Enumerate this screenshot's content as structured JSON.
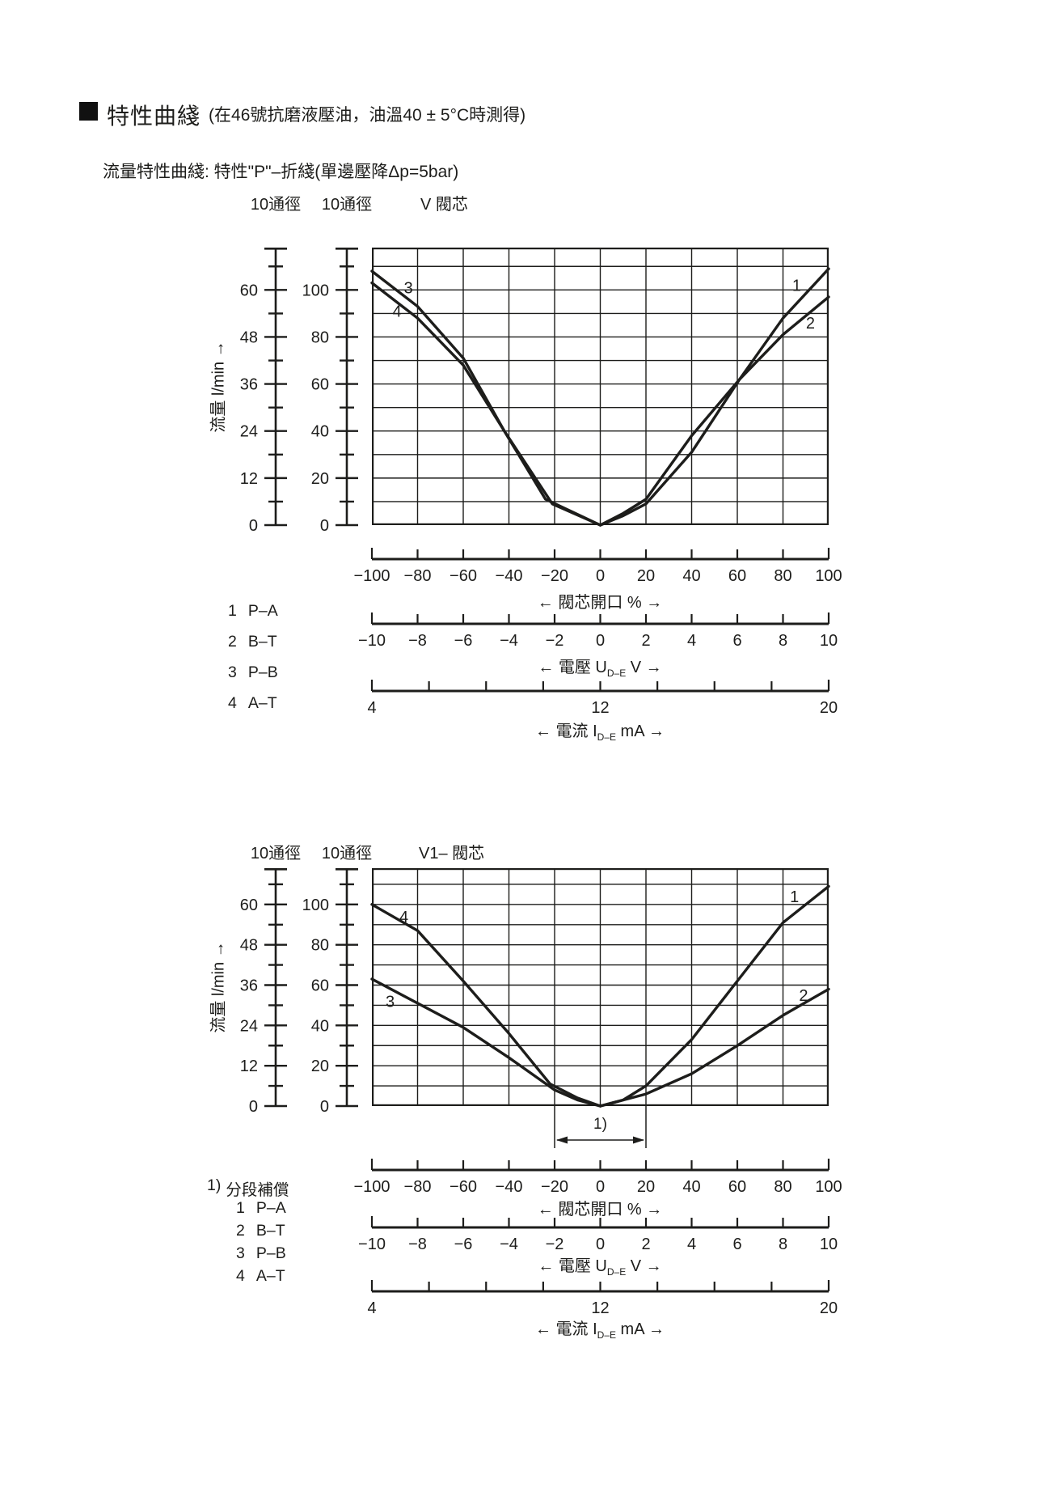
{
  "page": {
    "heading": "特性曲綫",
    "heading_note": "(在46號抗磨液壓油，油溫40 ± 5°C時測得)",
    "subtitle": "流量特性曲綫: 特性\"P\"–折綫(單邊壓降Δp=5bar)"
  },
  "colors": {
    "ink": "#1d1d1b",
    "bg": "#ffffff"
  },
  "axis_labels": {
    "flow": "流量 l/min →",
    "opening": "← 閥芯開口 % →",
    "voltage": {
      "pre": "← 電壓 U",
      "sub": "D–E",
      "post": " V →"
    },
    "current": {
      "pre": "← 電流 I",
      "sub": "D–E",
      "post": " mA →"
    }
  },
  "chart_data": [
    {
      "type": "line",
      "title": "V 閥芯",
      "size_labels": [
        "10通徑",
        "10通徑"
      ],
      "ylabel": "流量 l/min →",
      "xlabel": "閥芯開口 %",
      "xlim": [
        -100,
        100
      ],
      "y_frame": 118,
      "y_grid_max": 110,
      "grid": true,
      "y_outer": {
        "label_ticks": [
          0,
          12,
          24,
          36,
          48,
          60
        ],
        "minor_step": 6,
        "aligns_60_with_inner": 100
      },
      "y_inner": {
        "label_ticks": [
          0,
          20,
          40,
          60,
          80,
          100
        ],
        "minor_step": 10
      },
      "x_axis_percent": {
        "min": -100,
        "max": 100,
        "step": 20,
        "labels": [
          -100,
          -80,
          -60,
          -40,
          -20,
          0,
          20,
          40,
          60,
          80,
          100
        ]
      },
      "x_axis_voltage": {
        "min": -10,
        "max": 10,
        "step": 2,
        "labels": [
          -10,
          -8,
          -6,
          -4,
          -2,
          0,
          2,
          4,
          6,
          8,
          10
        ]
      },
      "x_axis_current": {
        "min": 4,
        "max": 20,
        "step": 2,
        "labels": [
          4,
          12,
          20
        ]
      },
      "series": [
        {
          "name": "1 P–A",
          "curve_label": "1",
          "label_at": [
            86,
            102
          ],
          "points": [
            [
              0,
              0
            ],
            [
              10,
              4
            ],
            [
              20,
              9
            ],
            [
              40,
              31
            ],
            [
              61,
              62
            ],
            [
              80,
              88
            ],
            [
              100,
              109
            ]
          ]
        },
        {
          "name": "2 B–T",
          "curve_label": "2",
          "label_at": [
            92,
            86
          ],
          "points": [
            [
              0,
              0
            ],
            [
              10,
              5
            ],
            [
              20,
              11
            ],
            [
              40,
              38
            ],
            [
              61,
              62
            ],
            [
              80,
              81
            ],
            [
              100,
              97
            ]
          ]
        },
        {
          "name": "3 P–B",
          "curve_label": "3",
          "label_at": [
            -84,
            101
          ],
          "points": [
            [
              -100,
              108
            ],
            [
              -80,
              93
            ],
            [
              -60,
              71
            ],
            [
              -42,
              40
            ],
            [
              -24,
              11
            ],
            [
              0,
              0
            ]
          ]
        },
        {
          "name": "4 A–T",
          "curve_label": "4",
          "label_at": [
            -89,
            91
          ],
          "points": [
            [
              -100,
              103
            ],
            [
              -80,
              88
            ],
            [
              -60,
              68
            ],
            [
              -42,
              40
            ],
            [
              -21,
              9
            ],
            [
              0,
              0
            ]
          ]
        }
      ],
      "legend": [
        {
          "num": "1",
          "ports": "P–A"
        },
        {
          "num": "2",
          "ports": "B–T"
        },
        {
          "num": "3",
          "ports": "P–B"
        },
        {
          "num": "4",
          "ports": "A–T"
        }
      ]
    },
    {
      "type": "line",
      "title": "V1– 閥芯",
      "size_labels": [
        "10通徑",
        "10通徑"
      ],
      "ylabel": "流量 l/min →",
      "xlabel": "閥芯開口 %",
      "xlim": [
        -100,
        100
      ],
      "y_frame": 118,
      "y_grid_max": 110,
      "grid": true,
      "y_outer": {
        "label_ticks": [
          0,
          12,
          24,
          36,
          48,
          60
        ],
        "minor_step": 6,
        "aligns_60_with_inner": 100
      },
      "y_inner": {
        "label_ticks": [
          0,
          20,
          40,
          60,
          80,
          100
        ],
        "minor_step": 10
      },
      "x_axis_percent": {
        "min": -100,
        "max": 100,
        "step": 20,
        "labels": [
          -100,
          -80,
          -60,
          -40,
          -20,
          0,
          20,
          40,
          60,
          80,
          100
        ]
      },
      "x_axis_voltage": {
        "min": -10,
        "max": 10,
        "step": 2,
        "labels": [
          -10,
          -8,
          -6,
          -4,
          -2,
          0,
          2,
          4,
          6,
          8,
          10
        ]
      },
      "x_axis_current": {
        "min": 4,
        "max": 20,
        "step": 2,
        "labels": [
          4,
          12,
          20
        ]
      },
      "series": [
        {
          "name": "1 P–A",
          "curve_label": "1",
          "label_at": [
            85,
            104
          ],
          "points": [
            [
              0,
              0
            ],
            [
              10,
              3
            ],
            [
              20,
              10
            ],
            [
              40,
              33
            ],
            [
              60,
              62
            ],
            [
              80,
              91
            ],
            [
              100,
              109
            ]
          ]
        },
        {
          "name": "2 B–T",
          "curve_label": "2",
          "label_at": [
            89,
            55
          ],
          "points": [
            [
              0,
              0
            ],
            [
              20,
              6
            ],
            [
              40,
              16
            ],
            [
              60,
              30
            ],
            [
              80,
              45
            ],
            [
              100,
              58
            ]
          ]
        },
        {
          "name": "3 P–B",
          "curve_label": "3",
          "label_at": [
            -92,
            52
          ],
          "points": [
            [
              -100,
              63
            ],
            [
              -80,
              51
            ],
            [
              -60,
              39
            ],
            [
              -40,
              24
            ],
            [
              -20,
              8
            ],
            [
              -10,
              3
            ],
            [
              0,
              0
            ]
          ]
        },
        {
          "name": "4 A–T",
          "curve_label": "4",
          "label_at": [
            -86,
            94
          ],
          "points": [
            [
              -100,
              100
            ],
            [
              -80,
              87
            ],
            [
              -60,
              62
            ],
            [
              -40,
              36
            ],
            [
              -22,
              11
            ],
            [
              -10,
              4
            ],
            [
              0,
              0
            ]
          ]
        }
      ],
      "legend": [
        {
          "num": "1",
          "ports": "P–A"
        },
        {
          "num": "2",
          "ports": "B–T"
        },
        {
          "num": "3",
          "ports": "P–B"
        },
        {
          "num": "4",
          "ports": "A–T"
        }
      ],
      "footnote": {
        "marker": "1)",
        "text": "分段補償"
      },
      "annotation": {
        "marker": "1)",
        "from_percent": -20,
        "to_percent": 20
      }
    }
  ]
}
